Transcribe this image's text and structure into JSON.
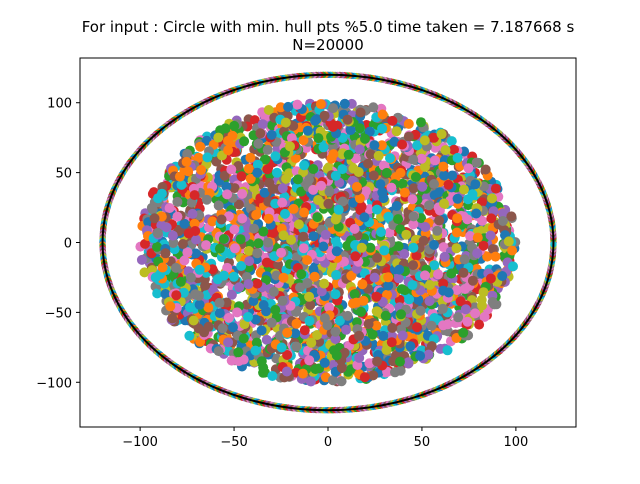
{
  "chart_data": {
    "type": "scatter",
    "title": "For input : Circle with min. hull pts %5.0 time taken = 7.187668 s",
    "subtitle": "N=20000",
    "xlabel": "",
    "ylabel": "",
    "xlim": [
      -132,
      132
    ],
    "ylim": [
      -132,
      132
    ],
    "xticks": [
      -100,
      -50,
      0,
      50,
      100
    ],
    "yticks": [
      -100,
      -50,
      0,
      50,
      100
    ],
    "xtick_labels": [
      "−100",
      "−50",
      "0",
      "50",
      "100"
    ],
    "ytick_labels": [
      "−100",
      "−50",
      "0",
      "50",
      "100"
    ],
    "grid": false,
    "legend": "none",
    "series": [
      {
        "shape": "disk",
        "x_radius": 100,
        "y_radius": 100,
        "n_points": 19000,
        "marker": "circle"
      },
      {
        "shape": "circle",
        "x_radius": 120,
        "y_radius": 120,
        "n_points": 1000,
        "marker": "circle"
      },
      {
        "shape": "hull",
        "x_radius": 120,
        "y_radius": 120,
        "line_color": "#000000",
        "marker": "line"
      }
    ],
    "marker_colors": [
      "#1f77b4",
      "#ff7f0e",
      "#2ca02c",
      "#d62728",
      "#9467bd",
      "#8c564b",
      "#e377c2",
      "#7f7f7f",
      "#bcbd22",
      "#17becf"
    ]
  }
}
